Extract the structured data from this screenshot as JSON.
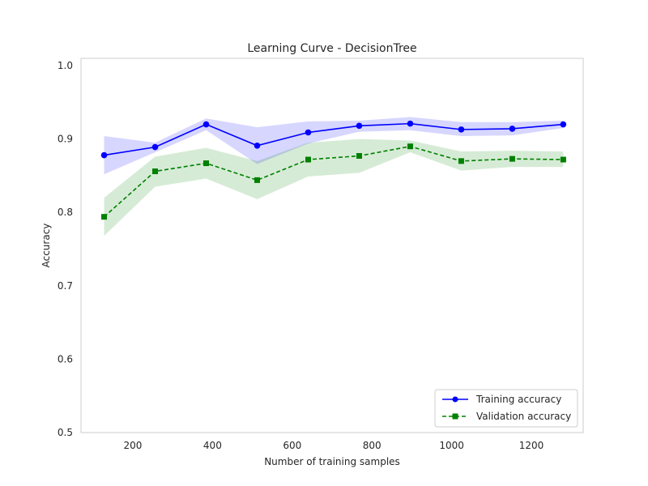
{
  "chart_data": {
    "type": "line",
    "title": "Learning Curve - DecisionTree",
    "xlabel": "Number of training samples",
    "ylabel": "Accuracy",
    "xlim": [
      70,
      1330
    ],
    "ylim": [
      0.5,
      1.01
    ],
    "x_ticks": [
      200,
      400,
      600,
      800,
      1000,
      1200
    ],
    "y_ticks": [
      0.5,
      0.6,
      0.7,
      0.8,
      0.9,
      1.0
    ],
    "x_tick_labels": [
      "200",
      "400",
      "600",
      "800",
      "1000",
      "1200"
    ],
    "y_tick_labels": [
      "0.5",
      "0.6",
      "0.7",
      "0.8",
      "0.9",
      "1.0"
    ],
    "grid": false,
    "legend_position": "lower-right",
    "x": [
      128,
      256,
      384,
      512,
      640,
      768,
      896,
      1024,
      1152,
      1280
    ],
    "series": [
      {
        "name": "Training accuracy",
        "color": "#0000ff",
        "line_style": "solid",
        "marker": "circle",
        "values": [
          0.878,
          0.889,
          0.92,
          0.891,
          0.909,
          0.918,
          0.921,
          0.913,
          0.914,
          0.92
        ],
        "band_upper": [
          0.904,
          0.895,
          0.928,
          0.916,
          0.924,
          0.925,
          0.93,
          0.923,
          0.923,
          0.925
        ],
        "band_lower": [
          0.852,
          0.882,
          0.912,
          0.866,
          0.894,
          0.91,
          0.912,
          0.904,
          0.905,
          0.915
        ]
      },
      {
        "name": "Validation accuracy",
        "color": "#008000",
        "line_style": "dashed",
        "marker": "square",
        "values": [
          0.794,
          0.856,
          0.867,
          0.844,
          0.872,
          0.877,
          0.89,
          0.87,
          0.873,
          0.872
        ],
        "band_upper": [
          0.82,
          0.876,
          0.888,
          0.87,
          0.895,
          0.9,
          0.898,
          0.883,
          0.884,
          0.883
        ],
        "band_lower": [
          0.768,
          0.835,
          0.846,
          0.818,
          0.849,
          0.854,
          0.882,
          0.857,
          0.862,
          0.862
        ]
      }
    ]
  }
}
